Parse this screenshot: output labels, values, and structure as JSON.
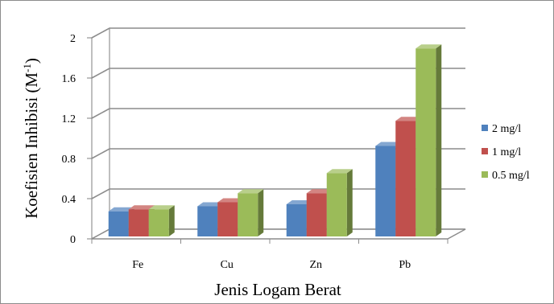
{
  "chart_data": {
    "type": "bar",
    "title": "",
    "xlabel": "Jenis Logam Berat",
    "ylabel_main": "Koefisien Inhibisi (M",
    "ylabel_sup": "-1",
    "ylabel_close": ")",
    "ylim": [
      0,
      2
    ],
    "yticks": [
      "0",
      "0.4",
      "0.8",
      "1.2",
      "1.6",
      "2"
    ],
    "categories": [
      "Fe",
      "Cu",
      "Zn",
      "Pb"
    ],
    "series": [
      {
        "name": "2 mg/l",
        "color": "#4f81bd",
        "values": [
          0.25,
          0.3,
          0.32,
          0.9
        ]
      },
      {
        "name": "1 mg/l",
        "color": "#c0504d",
        "values": [
          0.27,
          0.34,
          0.43,
          1.15
        ]
      },
      {
        "name": "0.5 mg/l",
        "color": "#9bbb59",
        "values": [
          0.27,
          0.43,
          0.63,
          1.87
        ]
      }
    ],
    "grid": true,
    "legend_position": "right",
    "style": "3d-clustered-column"
  }
}
